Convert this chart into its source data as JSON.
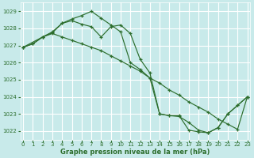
{
  "background_color": "#c8eaea",
  "grid_color": "#ffffff",
  "line_color": "#2d6e2d",
  "xlabel": "Graphe pression niveau de la mer (hPa)",
  "xlabel_color": "#2d6e2d",
  "tick_color": "#2d6e2d",
  "ylim": [
    1021.5,
    1029.5
  ],
  "yticks": [
    1022,
    1023,
    1024,
    1025,
    1026,
    1027,
    1028,
    1029
  ],
  "xticks": [
    0,
    1,
    2,
    3,
    4,
    5,
    6,
    7,
    8,
    9,
    10,
    11,
    12,
    13,
    14,
    15,
    16,
    17,
    18,
    19,
    20,
    21,
    22,
    23
  ],
  "xlim": [
    -0.3,
    23.3
  ],
  "series": [
    {
      "x": [
        0,
        1,
        2,
        3,
        4,
        5,
        6,
        7,
        8,
        9,
        10,
        11,
        12,
        13,
        14,
        15,
        16,
        17,
        18,
        19,
        20,
        21,
        22,
        23
      ],
      "y": [
        1026.9,
        1027.1,
        1027.5,
        1027.75,
        1028.3,
        1028.55,
        1028.75,
        1029.0,
        1028.6,
        1028.2,
        1027.8,
        1026.0,
        1025.6,
        1025.1,
        1023.0,
        1022.9,
        1022.9,
        1022.05,
        1021.95,
        1021.9,
        1022.2,
        1023.0,
        1023.5,
        1024.0
      ]
    },
    {
      "x": [
        0,
        2,
        3,
        4,
        5,
        6,
        7,
        8,
        9,
        10,
        11,
        12,
        13,
        14,
        15,
        16,
        17,
        18,
        19,
        20,
        21,
        22,
        23
      ],
      "y": [
        1026.9,
        1027.5,
        1027.7,
        1027.5,
        1027.3,
        1027.1,
        1026.9,
        1026.7,
        1026.4,
        1026.1,
        1025.8,
        1025.5,
        1025.1,
        1024.8,
        1024.4,
        1024.1,
        1023.7,
        1023.4,
        1023.1,
        1022.7,
        1022.4,
        1022.1,
        1024.0
      ]
    },
    {
      "x": [
        0,
        1,
        2,
        3,
        4,
        5,
        6,
        7,
        8,
        9,
        10,
        11,
        12,
        13,
        14,
        15,
        16,
        17,
        18,
        19,
        20,
        21,
        22,
        23
      ],
      "y": [
        1026.9,
        1027.1,
        1027.5,
        1027.8,
        1028.3,
        1028.45,
        1028.25,
        1028.1,
        1027.5,
        1028.1,
        1028.2,
        1027.7,
        1026.2,
        1025.4,
        1023.0,
        1022.9,
        1022.85,
        1022.5,
        1022.05,
        1021.9,
        1022.2,
        1023.0,
        1023.5,
        1024.0
      ]
    }
  ]
}
